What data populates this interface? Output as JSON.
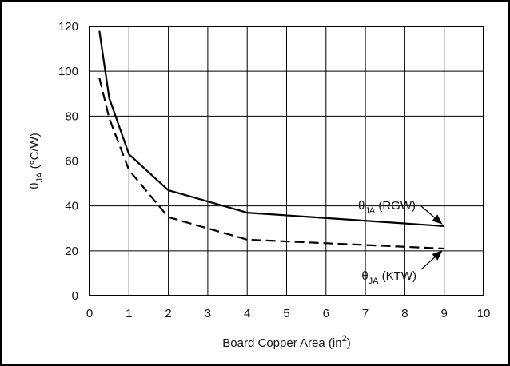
{
  "chart_data": {
    "type": "line",
    "title": "",
    "xlabel": {
      "main": "Board Copper Area (in",
      "sup": "2",
      "close": ")"
    },
    "ylabel": {
      "theta": "θ",
      "sub": "JA",
      "rest": " (°C/W)"
    },
    "xlim": [
      0,
      10
    ],
    "ylim": [
      0,
      120
    ],
    "xticks": [
      0,
      1,
      2,
      3,
      4,
      5,
      6,
      7,
      8,
      9,
      10
    ],
    "yticks": [
      0,
      20,
      40,
      60,
      80,
      100,
      120
    ],
    "grid": true,
    "series": [
      {
        "name": "θJA (RGW)",
        "style": "solid",
        "color": "#000000",
        "x": [
          0.25,
          0.5,
          1,
          2,
          4,
          9
        ],
        "y": [
          118,
          88,
          63,
          47,
          37,
          31
        ]
      },
      {
        "name": "θJA (KTW)",
        "style": "dashed",
        "color": "#000000",
        "x": [
          0.25,
          0.5,
          1,
          2,
          4,
          9
        ],
        "y": [
          97,
          79,
          56,
          35,
          25,
          21
        ]
      }
    ],
    "annotations": [
      {
        "theta": "θ",
        "sub": "JA",
        "rest": " (RGW)",
        "target_series": 0
      },
      {
        "theta": "θ",
        "sub": "JA",
        "rest": " (KTW)",
        "target_series": 1
      }
    ]
  }
}
